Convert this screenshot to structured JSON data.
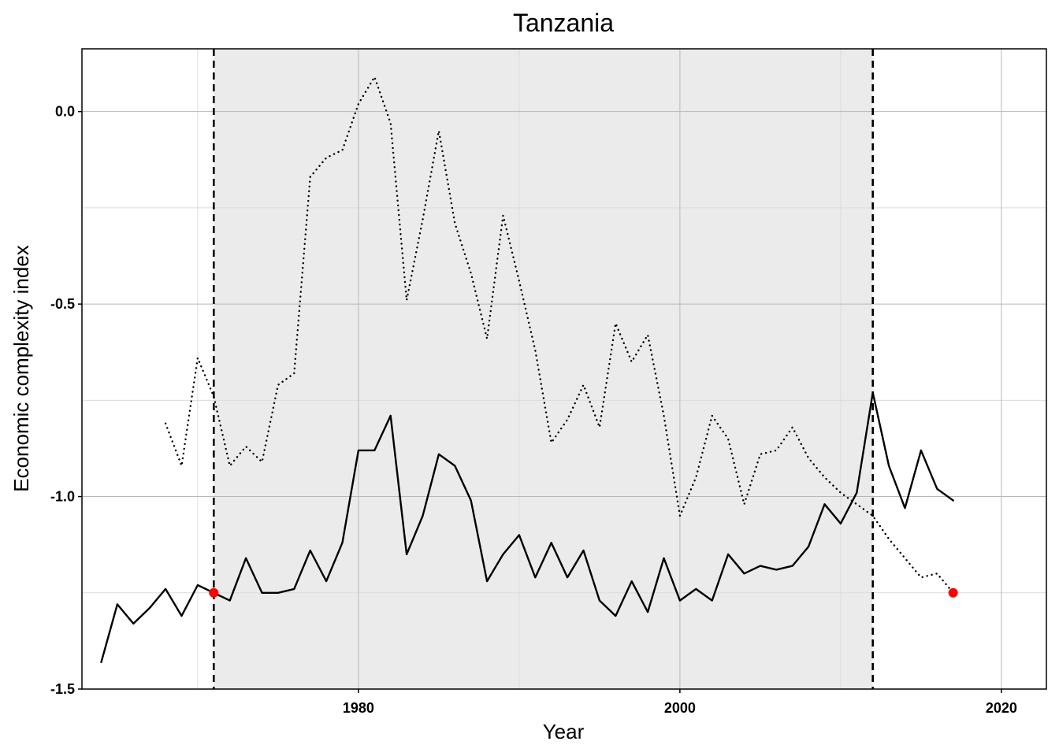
{
  "chart_data": {
    "type": "line",
    "title": "Tanzania",
    "xlabel": "Year",
    "ylabel": "Economic complexity index",
    "xlim": [
      1962.8,
      2022.8
    ],
    "ylim": [
      -1.5,
      0.163
    ],
    "x_ticks": [
      {
        "value": 1980,
        "label": "1980"
      },
      {
        "value": 2000,
        "label": "2000"
      },
      {
        "value": 2020,
        "label": "2020"
      }
    ],
    "x_minor_grid": [
      1970,
      1990,
      2010
    ],
    "y_ticks": [
      {
        "value": 0.0,
        "label": "0.0"
      },
      {
        "value": -0.5,
        "label": "-0.5"
      },
      {
        "value": -1.0,
        "label": "-1.0"
      },
      {
        "value": -1.5,
        "label": "-1.5"
      }
    ],
    "y_minor_grid": [
      -0.25,
      -0.75,
      -1.25
    ],
    "grid": true,
    "shaded_period": {
      "start": 1971,
      "end": 2012,
      "color": "#ebebeb"
    },
    "vertical_lines": [
      {
        "x": 1971,
        "style": "dashed"
      },
      {
        "x": 2012,
        "style": "dashed"
      }
    ],
    "series": [
      {
        "style": "solid",
        "color": "#000000",
        "x": [
          1964,
          1965,
          1966,
          1967,
          1968,
          1969,
          1970,
          1971,
          1972,
          1973,
          1974,
          1975,
          1976,
          1977,
          1978,
          1979,
          1980,
          1981,
          1982,
          1983,
          1984,
          1985,
          1986,
          1987,
          1988,
          1989,
          1990,
          1991,
          1992,
          1993,
          1994,
          1995,
          1996,
          1997,
          1998,
          1999,
          2000,
          2001,
          2002,
          2003,
          2004,
          2005,
          2006,
          2007,
          2008,
          2009,
          2010,
          2011,
          2012,
          2013,
          2014,
          2015,
          2016,
          2017
        ],
        "y": [
          -1.43,
          -1.28,
          -1.33,
          -1.29,
          -1.24,
          -1.31,
          -1.23,
          -1.25,
          -1.27,
          -1.16,
          -1.25,
          -1.25,
          -1.24,
          -1.14,
          -1.22,
          -1.12,
          -0.88,
          -0.88,
          -0.79,
          -1.15,
          -1.05,
          -0.89,
          -0.92,
          -1.01,
          -1.22,
          -1.15,
          -1.1,
          -1.21,
          -1.12,
          -1.21,
          -1.14,
          -1.27,
          -1.31,
          -1.22,
          -1.3,
          -1.16,
          -1.27,
          -1.24,
          -1.27,
          -1.15,
          -1.2,
          -1.18,
          -1.19,
          -1.18,
          -1.13,
          -1.02,
          -1.07,
          -0.99,
          -0.73,
          -0.92,
          -1.03,
          -0.88,
          -0.98,
          -1.01
        ]
      },
      {
        "style": "dotted",
        "color": "#000000",
        "x": [
          1968,
          1969,
          1970,
          1971,
          1972,
          1973,
          1974,
          1975,
          1976,
          1977,
          1978,
          1979,
          1980,
          1981,
          1982,
          1983,
          1984,
          1985,
          1986,
          1987,
          1988,
          1989,
          1990,
          1991,
          1992,
          1993,
          1994,
          1995,
          1996,
          1997,
          1998,
          1999,
          2000,
          2001,
          2002,
          2003,
          2004,
          2005,
          2006,
          2007,
          2008,
          2009,
          2010,
          2011,
          2012,
          2013,
          2014,
          2015,
          2016,
          2017
        ],
        "y": [
          -0.81,
          -0.92,
          -0.64,
          -0.74,
          -0.92,
          -0.87,
          -0.91,
          -0.71,
          -0.68,
          -0.17,
          -0.12,
          -0.1,
          0.02,
          0.09,
          -0.03,
          -0.49,
          -0.28,
          -0.05,
          -0.29,
          -0.42,
          -0.59,
          -0.27,
          -0.44,
          -0.62,
          -0.86,
          -0.8,
          -0.71,
          -0.82,
          -0.55,
          -0.65,
          -0.58,
          -0.79,
          -1.05,
          -0.95,
          -0.79,
          -0.85,
          -1.02,
          -0.89,
          -0.88,
          -0.82,
          -0.9,
          -0.95,
          -0.99,
          -1.02,
          -1.05,
          -1.11,
          -1.16,
          -1.21,
          -1.2,
          -1.25
        ]
      }
    ],
    "markers": [
      {
        "x": 1971,
        "y": -1.25,
        "color": "#ff0000"
      },
      {
        "x": 2017,
        "y": -1.25,
        "color": "#ff0000"
      }
    ]
  }
}
